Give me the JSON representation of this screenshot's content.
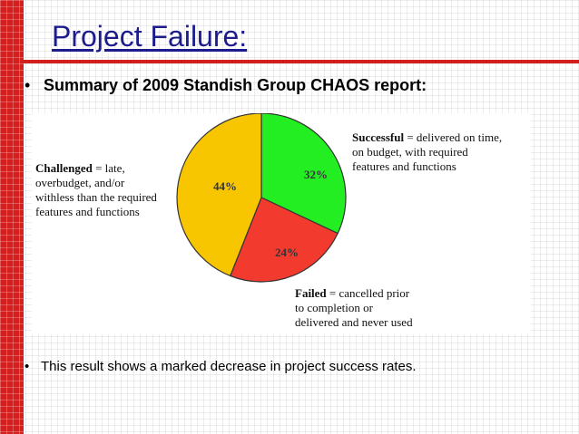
{
  "slide": {
    "title": "Project Failure:",
    "bullet1": "Summary of 2009 Standish Group CHAOS report:",
    "bullet2": "This result shows a marked decrease in project success rates.",
    "bullet_symbol": "•"
  },
  "theme": {
    "accent_red": "#d41f1f",
    "title_blue": "#1c1c8c"
  },
  "chart_data": {
    "type": "pie",
    "slices": [
      {
        "key": "successful",
        "value": 32,
        "value_label": "32%",
        "color": "#22ee22",
        "label_bold": "Successful",
        "label_rest": " = delivered on time,",
        "label_lines": [
          "on budget, with required",
          "features and functions"
        ]
      },
      {
        "key": "failed",
        "value": 24,
        "value_label": "24%",
        "color": "#f23a2e",
        "label_bold": "Failed",
        "label_rest": " = cancelled prior",
        "label_lines": [
          "to completion or",
          "delivered and never used"
        ]
      },
      {
        "key": "challenged",
        "value": 44,
        "value_label": "44%",
        "color": "#f7c600",
        "label_bold": "Challenged",
        "label_rest": " = late,",
        "label_lines": [
          "overbudget, and/or",
          "withless than the required",
          "features and functions"
        ]
      }
    ]
  }
}
